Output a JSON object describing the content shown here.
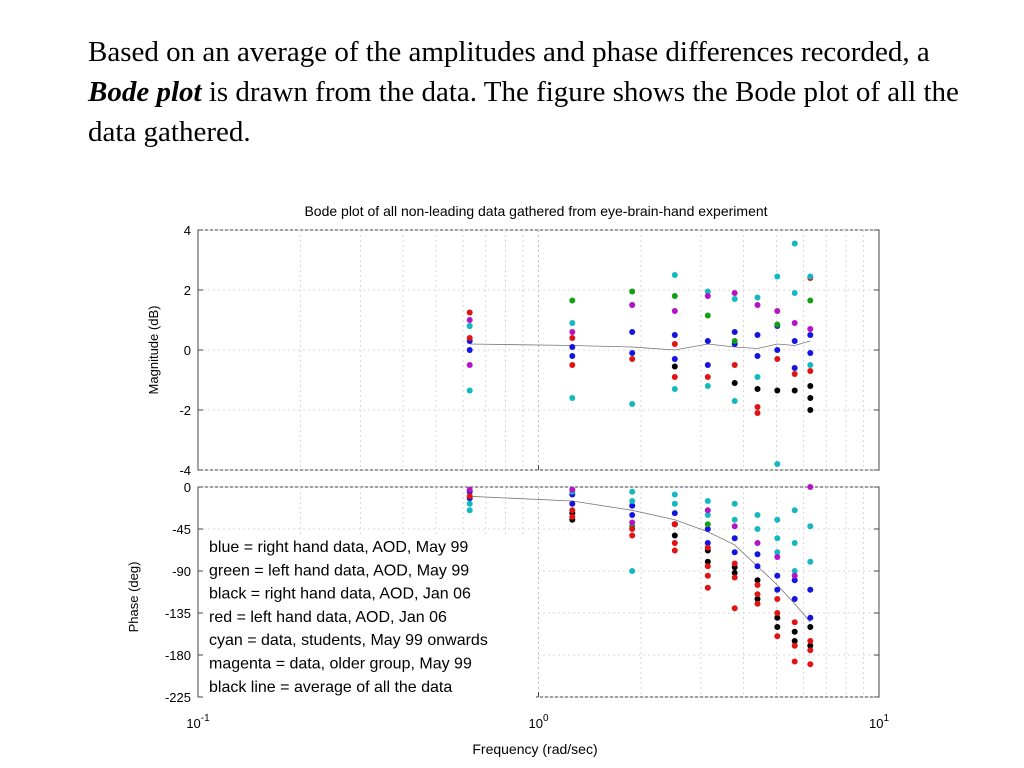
{
  "slide": {
    "text_before": "Based on an average of the amplitudes and phase differences recorded, a ",
    "emphasis": "Bode plot",
    "text_after": " is drawn from the data. The figure shows the Bode plot of all the data gathered."
  },
  "colors": {
    "blue": "#1414e0",
    "green": "#14a014",
    "black": "#000000",
    "red": "#e01414",
    "cyan": "#14b8c0",
    "magenta": "#b414c8",
    "average_line": "#777777"
  },
  "chart_data": {
    "type": "scatter",
    "title": "Bode plot of all non-leading data gathered from eye-brain-hand experiment",
    "xlabel": "Frequency  (rad/sec)",
    "xscale": "log",
    "xlim": [
      0.1,
      10
    ],
    "x_tick_labels": [
      {
        "base": "10",
        "exp": "-1"
      },
      {
        "base": "10",
        "exp": "0"
      },
      {
        "base": "10",
        "exp": "1"
      }
    ],
    "x": [
      0.628,
      1.257,
      1.885,
      2.513,
      3.142,
      3.77,
      4.398,
      5.027,
      5.655,
      6.283
    ],
    "magnitude": {
      "ylabel": "Magnitude (dB)",
      "ylim": [
        -4,
        4
      ],
      "yticks": [
        4,
        2,
        0,
        -2,
        -4
      ],
      "average": [
        0.2,
        0.15,
        0.1,
        0.0,
        0.2,
        0.1,
        0.05,
        0.2,
        0.15,
        0.3
      ],
      "series": [
        {
          "name": "blue",
          "points": [
            [
              0.628,
              0.0
            ],
            [
              0.628,
              0.3
            ],
            [
              1.257,
              0.1
            ],
            [
              1.257,
              -0.2
            ],
            [
              1.885,
              0.6
            ],
            [
              1.885,
              -0.1
            ],
            [
              2.513,
              0.5
            ],
            [
              2.513,
              -0.3
            ],
            [
              3.142,
              0.3
            ],
            [
              3.142,
              -0.5
            ],
            [
              3.77,
              0.6
            ],
            [
              3.77,
              0.2
            ],
            [
              4.398,
              -0.2
            ],
            [
              4.398,
              0.5
            ],
            [
              5.027,
              0.0
            ],
            [
              5.027,
              0.8
            ],
            [
              5.655,
              0.3
            ],
            [
              5.655,
              -0.6
            ],
            [
              6.283,
              -0.1
            ],
            [
              6.283,
              0.5
            ]
          ]
        },
        {
          "name": "green",
          "points": [
            [
              0.628,
              0.8
            ],
            [
              1.257,
              1.65
            ],
            [
              1.885,
              1.95
            ],
            [
              2.513,
              1.8
            ],
            [
              3.142,
              1.15
            ],
            [
              3.77,
              0.3
            ],
            [
              5.027,
              0.85
            ],
            [
              6.283,
              1.65
            ]
          ]
        },
        {
          "name": "black",
          "points": [
            [
              2.513,
              -0.55
            ],
            [
              3.77,
              -1.1
            ],
            [
              4.398,
              -1.3
            ],
            [
              5.027,
              -1.35
            ],
            [
              5.655,
              -1.35
            ],
            [
              6.283,
              -1.2
            ],
            [
              6.283,
              -1.6
            ],
            [
              6.283,
              -2.0
            ]
          ]
        },
        {
          "name": "red",
          "points": [
            [
              0.628,
              1.25
            ],
            [
              0.628,
              0.4
            ],
            [
              1.257,
              0.4
            ],
            [
              1.257,
              -0.5
            ],
            [
              1.885,
              -0.3
            ],
            [
              2.513,
              0.2
            ],
            [
              2.513,
              -0.9
            ],
            [
              3.142,
              -0.9
            ],
            [
              3.77,
              -0.5
            ],
            [
              4.398,
              -2.1
            ],
            [
              4.398,
              -1.9
            ],
            [
              5.027,
              -0.3
            ],
            [
              5.655,
              -0.8
            ],
            [
              6.283,
              2.4
            ],
            [
              6.283,
              -0.7
            ]
          ]
        },
        {
          "name": "cyan",
          "points": [
            [
              0.628,
              -1.35
            ],
            [
              0.628,
              0.8
            ],
            [
              1.257,
              -1.6
            ],
            [
              1.257,
              0.9
            ],
            [
              1.885,
              -1.8
            ],
            [
              1.885,
              1.5
            ],
            [
              2.513,
              2.5
            ],
            [
              2.513,
              -1.3
            ],
            [
              3.142,
              1.95
            ],
            [
              3.142,
              -1.2
            ],
            [
              3.77,
              1.7
            ],
            [
              3.77,
              -1.7
            ],
            [
              4.398,
              1.75
            ],
            [
              4.398,
              -0.9
            ],
            [
              5.027,
              2.45
            ],
            [
              5.027,
              -3.8
            ],
            [
              5.655,
              3.55
            ],
            [
              5.655,
              1.9
            ],
            [
              6.283,
              2.45
            ],
            [
              6.283,
              -0.5
            ]
          ]
        },
        {
          "name": "magenta",
          "points": [
            [
              0.628,
              -0.5
            ],
            [
              0.628,
              1.0
            ],
            [
              1.257,
              0.6
            ],
            [
              1.885,
              1.5
            ],
            [
              2.513,
              1.3
            ],
            [
              3.142,
              1.8
            ],
            [
              3.77,
              1.9
            ],
            [
              4.398,
              1.5
            ],
            [
              5.027,
              1.3
            ],
            [
              5.655,
              0.9
            ],
            [
              6.283,
              0.7
            ]
          ]
        }
      ]
    },
    "phase": {
      "ylabel": "Phase (deg)",
      "ylim": [
        -225,
        0
      ],
      "yticks": [
        0,
        -45,
        -90,
        -135,
        -180,
        -225
      ],
      "average": [
        -10,
        -15,
        -25,
        -35,
        -48,
        -62,
        -85,
        -105,
        -125,
        -145
      ],
      "series": [
        {
          "name": "blue",
          "points": [
            [
              0.628,
              -5
            ],
            [
              0.628,
              -12
            ],
            [
              1.257,
              -18
            ],
            [
              1.257,
              -8
            ],
            [
              1.885,
              -30
            ],
            [
              1.885,
              -20
            ],
            [
              2.513,
              -40
            ],
            [
              2.513,
              -28
            ],
            [
              3.142,
              -45
            ],
            [
              3.142,
              -60
            ],
            [
              3.77,
              -70
            ],
            [
              3.77,
              -55
            ],
            [
              4.398,
              -85
            ],
            [
              4.398,
              -72
            ],
            [
              5.027,
              -95
            ],
            [
              5.027,
              -110
            ],
            [
              5.655,
              -100
            ],
            [
              5.655,
              -120
            ],
            [
              6.283,
              -110
            ],
            [
              6.283,
              -140
            ]
          ]
        },
        {
          "name": "green",
          "points": [
            [
              1.885,
              -42
            ],
            [
              3.142,
              -40
            ]
          ]
        },
        {
          "name": "black",
          "points": [
            [
              1.257,
              -28
            ],
            [
              1.257,
              -35
            ],
            [
              2.513,
              -52
            ],
            [
              2.513,
              -40
            ],
            [
              3.142,
              -68
            ],
            [
              3.142,
              -80
            ],
            [
              3.77,
              -86
            ],
            [
              3.77,
              -92
            ],
            [
              4.398,
              -100
            ],
            [
              4.398,
              -120
            ],
            [
              5.027,
              -140
            ],
            [
              5.027,
              -150
            ],
            [
              5.655,
              -155
            ],
            [
              5.655,
              -165
            ],
            [
              6.283,
              -150
            ],
            [
              6.283,
              -170
            ]
          ]
        },
        {
          "name": "red",
          "points": [
            [
              0.628,
              -10
            ],
            [
              1.257,
              -25
            ],
            [
              1.257,
              -32
            ],
            [
              1.885,
              -45
            ],
            [
              1.885,
              -52
            ],
            [
              2.513,
              -40
            ],
            [
              2.513,
              -60
            ],
            [
              2.513,
              -68
            ],
            [
              3.142,
              -65
            ],
            [
              3.142,
              -85
            ],
            [
              3.142,
              -95
            ],
            [
              3.142,
              -108
            ],
            [
              3.77,
              -82
            ],
            [
              3.77,
              -97
            ],
            [
              3.77,
              -130
            ],
            [
              4.398,
              -105
            ],
            [
              4.398,
              -115
            ],
            [
              4.398,
              -125
            ],
            [
              5.027,
              -120
            ],
            [
              5.027,
              -135
            ],
            [
              5.027,
              -160
            ],
            [
              5.655,
              -145
            ],
            [
              5.655,
              -170
            ],
            [
              5.655,
              -187
            ],
            [
              6.283,
              -165
            ],
            [
              6.283,
              -175
            ],
            [
              6.283,
              -190
            ]
          ]
        },
        {
          "name": "cyan",
          "points": [
            [
              0.628,
              -18
            ],
            [
              0.628,
              -25
            ],
            [
              1.257,
              -5
            ],
            [
              1.885,
              -5
            ],
            [
              1.885,
              -15
            ],
            [
              1.885,
              -90
            ],
            [
              2.513,
              -8
            ],
            [
              2.513,
              -18
            ],
            [
              3.142,
              -15
            ],
            [
              3.142,
              -30
            ],
            [
              3.77,
              -18
            ],
            [
              3.77,
              -35
            ],
            [
              4.398,
              -30
            ],
            [
              4.398,
              -45
            ],
            [
              5.027,
              -35
            ],
            [
              5.027,
              -55
            ],
            [
              5.027,
              -70
            ],
            [
              5.655,
              -25
            ],
            [
              5.655,
              -60
            ],
            [
              5.655,
              -90
            ],
            [
              6.283,
              -42
            ],
            [
              6.283,
              -80
            ]
          ]
        },
        {
          "name": "magenta",
          "points": [
            [
              0.628,
              -3
            ],
            [
              1.257,
              -3
            ],
            [
              1.885,
              -38
            ],
            [
              3.142,
              -25
            ],
            [
              3.77,
              -42
            ],
            [
              4.398,
              -60
            ],
            [
              5.027,
              -75
            ],
            [
              5.655,
              -95
            ],
            [
              6.283,
              0
            ]
          ]
        }
      ]
    },
    "legend": {
      "placement": "bottom-left inside phase plot",
      "entries": [
        "blue = right hand data, AOD, May 99",
        "green = left hand data, AOD, May 99",
        "black = right hand data, AOD, Jan 06",
        "red = left hand data, AOD, Jan 06",
        "cyan = data, students, May 99 onwards",
        "magenta = data, older group, May 99",
        "black line = average of all the data"
      ]
    }
  }
}
